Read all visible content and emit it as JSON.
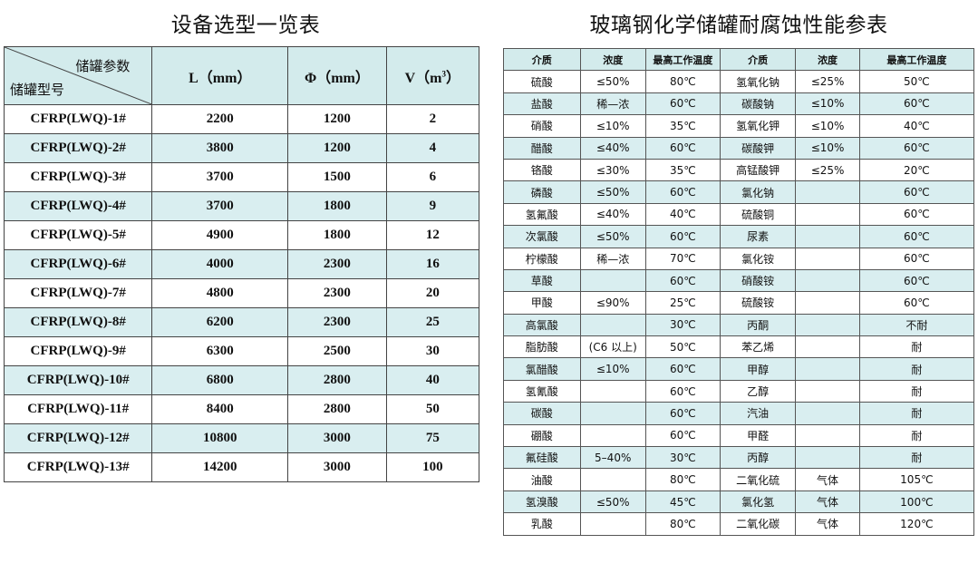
{
  "left": {
    "title": "设备选型一览表",
    "header": {
      "diag_top": "储罐参数",
      "diag_bottom": "储罐型号",
      "col_l": "L（mm）",
      "col_phi": "Φ（mm）",
      "col_v": "V（m",
      "col_v_sup": "3",
      "col_v_end": "）"
    },
    "rows": [
      {
        "model": "CFRP(LWQ)-1#",
        "l": "2200",
        "phi": "1200",
        "v": "2"
      },
      {
        "model": "CFRP(LWQ)-2#",
        "l": "3800",
        "phi": "1200",
        "v": "4"
      },
      {
        "model": "CFRP(LWQ)-3#",
        "l": "3700",
        "phi": "1500",
        "v": "6"
      },
      {
        "model": "CFRP(LWQ)-4#",
        "l": "3700",
        "phi": "1800",
        "v": "9"
      },
      {
        "model": "CFRP(LWQ)-5#",
        "l": "4900",
        "phi": "1800",
        "v": "12"
      },
      {
        "model": "CFRP(LWQ)-6#",
        "l": "4000",
        "phi": "2300",
        "v": "16"
      },
      {
        "model": "CFRP(LWQ)-7#",
        "l": "4800",
        "phi": "2300",
        "v": "20"
      },
      {
        "model": "CFRP(LWQ)-8#",
        "l": "6200",
        "phi": "2300",
        "v": "25"
      },
      {
        "model": "CFRP(LWQ)-9#",
        "l": "6300",
        "phi": "2500",
        "v": "30"
      },
      {
        "model": "CFRP(LWQ)-10#",
        "l": "6800",
        "phi": "2800",
        "v": "40"
      },
      {
        "model": "CFRP(LWQ)-11#",
        "l": "8400",
        "phi": "2800",
        "v": "50"
      },
      {
        "model": "CFRP(LWQ)-12#",
        "l": "10800",
        "phi": "3000",
        "v": "75"
      },
      {
        "model": "CFRP(LWQ)-13#",
        "l": "14200",
        "phi": "3000",
        "v": "100"
      }
    ]
  },
  "right": {
    "title": "玻璃钢化学储罐耐腐蚀性能参表",
    "headers": [
      "介质",
      "浓度",
      "最高工作温度",
      "介质",
      "浓度",
      "最高工作温度"
    ],
    "rows": [
      [
        "硫酸",
        "≤50%",
        "80℃",
        "氢氧化钠",
        "≤25%",
        "50℃"
      ],
      [
        "盐酸",
        "稀—浓",
        "60℃",
        "碳酸钠",
        "≤10%",
        "60℃"
      ],
      [
        "硝酸",
        "≤10%",
        "35℃",
        "氢氧化钾",
        "≤10%",
        "40℃"
      ],
      [
        "醋酸",
        "≤40%",
        "60℃",
        "碳酸钾",
        "≤10%",
        "60℃"
      ],
      [
        "铬酸",
        "≤30%",
        "35℃",
        "高锰酸钾",
        "≤25%",
        "20℃"
      ],
      [
        "磷酸",
        "≤50%",
        "60℃",
        "氯化钠",
        "",
        "60℃"
      ],
      [
        "氢氟酸",
        "≤40%",
        "40℃",
        "硫酸铜",
        "",
        "60℃"
      ],
      [
        "次氯酸",
        "≤50%",
        "60℃",
        "尿素",
        "",
        "60℃"
      ],
      [
        "柠檬酸",
        "稀—浓",
        "70℃",
        "氯化铵",
        "",
        "60℃"
      ],
      [
        "草酸",
        "",
        "60℃",
        "硝酸铵",
        "",
        "60℃"
      ],
      [
        "甲酸",
        "≤90%",
        "25℃",
        "硫酸铵",
        "",
        "60℃"
      ],
      [
        "高氯酸",
        "",
        "30℃",
        "丙酮",
        "",
        "不耐"
      ],
      [
        "脂肪酸",
        "(C6 以上)",
        "50℃",
        "苯乙烯",
        "",
        "耐"
      ],
      [
        "氯醋酸",
        "≤10%",
        "60℃",
        "甲醇",
        "",
        "耐"
      ],
      [
        "氢氰酸",
        "",
        "60℃",
        "乙醇",
        "",
        "耐"
      ],
      [
        "碳酸",
        "",
        "60℃",
        "汽油",
        "",
        "耐"
      ],
      [
        "硼酸",
        "",
        "60℃",
        "甲醛",
        "",
        "耐"
      ],
      [
        "氟硅酸",
        "5–40%",
        "30℃",
        "丙醇",
        "",
        "耐"
      ],
      [
        "油酸",
        "",
        "80℃",
        "二氧化硫",
        "气体",
        "105℃"
      ],
      [
        "氢溴酸",
        "≤50%",
        "45℃",
        "氯化氢",
        "气体",
        "100℃"
      ],
      [
        "乳酸",
        "",
        "80℃",
        "二氧化碳",
        "气体",
        "120℃"
      ]
    ]
  }
}
